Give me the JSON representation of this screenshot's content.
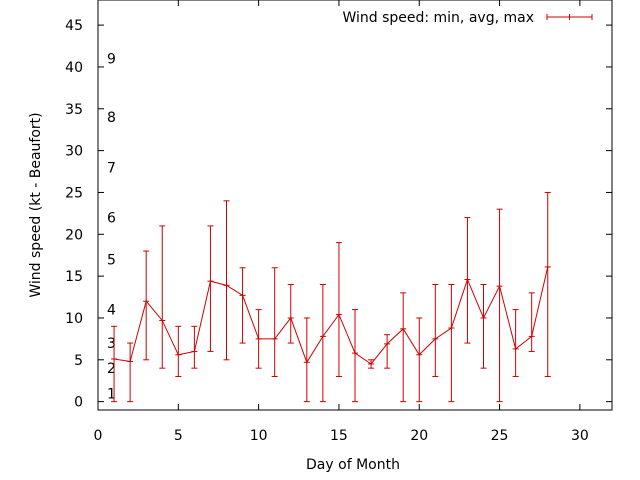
{
  "chart_data": {
    "type": "line",
    "title": "",
    "xlabel": "Day of Month",
    "ylabel": "Wind speed (kt - Beaufort)",
    "xlim": [
      0,
      32
    ],
    "ylim": [
      -1,
      48
    ],
    "x_ticks": [
      0,
      5,
      10,
      15,
      20,
      25,
      30
    ],
    "y_ticks": [
      0,
      5,
      10,
      15,
      20,
      25,
      30,
      35,
      40,
      45
    ],
    "grid": false,
    "legend_position": "top-right",
    "beaufort_labels": [
      {
        "label": "1",
        "y": 1
      },
      {
        "label": "2",
        "y": 4
      },
      {
        "label": "3",
        "y": 7
      },
      {
        "label": "4",
        "y": 11
      },
      {
        "label": "5",
        "y": 17
      },
      {
        "label": "6",
        "y": 22
      },
      {
        "label": "7",
        "y": 28
      },
      {
        "label": "8",
        "y": 34
      },
      {
        "label": "9",
        "y": 41
      }
    ],
    "series": [
      {
        "name": "Wind speed: min, avg, max",
        "color": "#cc0000",
        "x": [
          1,
          2,
          3,
          4,
          5,
          6,
          7,
          8,
          9,
          10,
          11,
          12,
          13,
          14,
          15,
          16,
          17,
          18,
          19,
          20,
          21,
          22,
          23,
          24,
          25,
          26,
          27,
          28
        ],
        "avg": [
          5.1,
          4.8,
          12,
          9.7,
          5.6,
          6,
          14.4,
          13.9,
          12.7,
          7.5,
          7.5,
          10,
          4.7,
          7.8,
          10.4,
          5.8,
          4.5,
          6.9,
          8.7,
          5.6,
          7.5,
          8.8,
          14.6,
          10,
          13.8,
          6.3,
          7.8,
          16.1
        ],
        "min": [
          0,
          0,
          5,
          4,
          3,
          4,
          6,
          5,
          7,
          4,
          3,
          7,
          0,
          0,
          3,
          0,
          4,
          4,
          0,
          0,
          3,
          0,
          7,
          4,
          0,
          3,
          6,
          3
        ],
        "max": [
          9,
          7,
          18,
          21,
          9,
          9,
          21,
          24,
          16,
          11,
          16,
          14,
          10,
          14,
          19,
          11,
          5,
          8,
          13,
          10,
          14,
          14,
          22,
          14,
          23,
          11,
          13,
          25
        ]
      }
    ]
  }
}
